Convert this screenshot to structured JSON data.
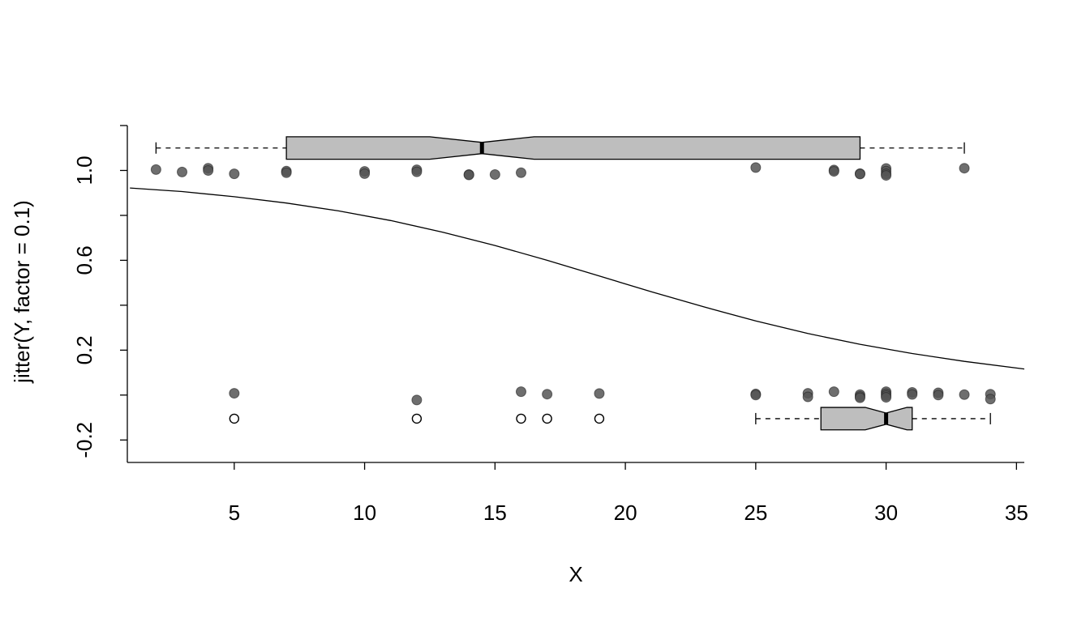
{
  "chart_data": {
    "type": "scatter",
    "title": "",
    "xlabel": "X",
    "ylabel": "jitter(Y, factor = 0.1)",
    "xlim": [
      0.9,
      35.3
    ],
    "ylim": [
      -0.3,
      1.2
    ],
    "x_ticks": [
      5,
      10,
      15,
      20,
      25,
      30,
      35
    ],
    "y_ticks": [
      -0.2,
      0,
      0.2,
      0.4,
      0.6,
      0.8,
      1.0,
      1.2
    ],
    "y_tick_labels": [
      {
        "value": -0.2,
        "label": "-0.2"
      },
      {
        "value": 0.2,
        "label": "0.2"
      },
      {
        "value": 0.6,
        "label": "0.6"
      },
      {
        "value": 1.0,
        "label": "1.0"
      }
    ],
    "grid": false,
    "colors": {
      "point_fill": "#555555",
      "box_fill": "#bebebe",
      "line": "#000000"
    },
    "points": [
      {
        "x": 2,
        "y": 1.004
      },
      {
        "x": 3,
        "y": 0.993
      },
      {
        "x": 4,
        "y": 1.01
      },
      {
        "x": 4,
        "y": 1.0
      },
      {
        "x": 5,
        "y": 0.985
      },
      {
        "x": 7,
        "y": 0.997
      },
      {
        "x": 7,
        "y": 0.99
      },
      {
        "x": 10,
        "y": 0.996
      },
      {
        "x": 10,
        "y": 0.986
      },
      {
        "x": 12,
        "y": 1.003
      },
      {
        "x": 12,
        "y": 0.994
      },
      {
        "x": 14,
        "y": 0.982
      },
      {
        "x": 14,
        "y": 0.98
      },
      {
        "x": 15,
        "y": 0.982
      },
      {
        "x": 16,
        "y": 0.99
      },
      {
        "x": 25,
        "y": 1.013
      },
      {
        "x": 28,
        "y": 1.002
      },
      {
        "x": 28,
        "y": 0.996
      },
      {
        "x": 29,
        "y": 0.986
      },
      {
        "x": 29,
        "y": 0.984
      },
      {
        "x": 30,
        "y": 1.009
      },
      {
        "x": 30,
        "y": 0.997
      },
      {
        "x": 30,
        "y": 0.985
      },
      {
        "x": 30,
        "y": 0.978
      },
      {
        "x": 33,
        "y": 1.01
      },
      {
        "x": 5,
        "y": 0.008
      },
      {
        "x": 12,
        "y": -0.022
      },
      {
        "x": 16,
        "y": 0.015
      },
      {
        "x": 17,
        "y": 0.004
      },
      {
        "x": 19,
        "y": 0.007
      },
      {
        "x": 25,
        "y": 0.005
      },
      {
        "x": 25,
        "y": 0.0
      },
      {
        "x": 27,
        "y": 0.008
      },
      {
        "x": 27,
        "y": -0.008
      },
      {
        "x": 28,
        "y": 0.015
      },
      {
        "x": 29,
        "y": 0.002
      },
      {
        "x": 29,
        "y": -0.006
      },
      {
        "x": 29,
        "y": -0.012
      },
      {
        "x": 30,
        "y": 0.015
      },
      {
        "x": 30,
        "y": 0.006
      },
      {
        "x": 30,
        "y": -0.002
      },
      {
        "x": 30,
        "y": -0.01
      },
      {
        "x": 31,
        "y": 0.012
      },
      {
        "x": 31,
        "y": 0.003
      },
      {
        "x": 32,
        "y": 0.01
      },
      {
        "x": 32,
        "y": 0.0
      },
      {
        "x": 33,
        "y": 0.002
      },
      {
        "x": 34,
        "y": 0.004
      },
      {
        "x": 34,
        "y": -0.018
      }
    ],
    "curve": {
      "x": [
        1,
        3,
        5,
        7,
        9,
        11,
        13,
        15,
        17,
        19,
        21,
        23,
        25,
        27,
        29,
        31,
        33,
        35.3
      ],
      "y": [
        0.922,
        0.906,
        0.883,
        0.855,
        0.82,
        0.777,
        0.725,
        0.666,
        0.6,
        0.53,
        0.46,
        0.393,
        0.33,
        0.274,
        0.226,
        0.185,
        0.15,
        0.116
      ]
    },
    "outliers": {
      "y": -0.105,
      "x": [
        5,
        12,
        16,
        17,
        19
      ]
    },
    "boxplots": [
      {
        "name": "top",
        "y": 1.1,
        "height": 0.1,
        "whisker_low": 2,
        "q1": 7,
        "median": 14.5,
        "q3": 29,
        "whisker_high": 33,
        "notch_low": 12.5,
        "notch_high": 16.5
      },
      {
        "name": "bottom",
        "y": -0.105,
        "height": 0.1,
        "whisker_low": 25,
        "q1": 27.5,
        "median": 30,
        "q3": 31,
        "whisker_high": 34,
        "notch_low": 29.2,
        "notch_high": 30.8
      }
    ]
  }
}
